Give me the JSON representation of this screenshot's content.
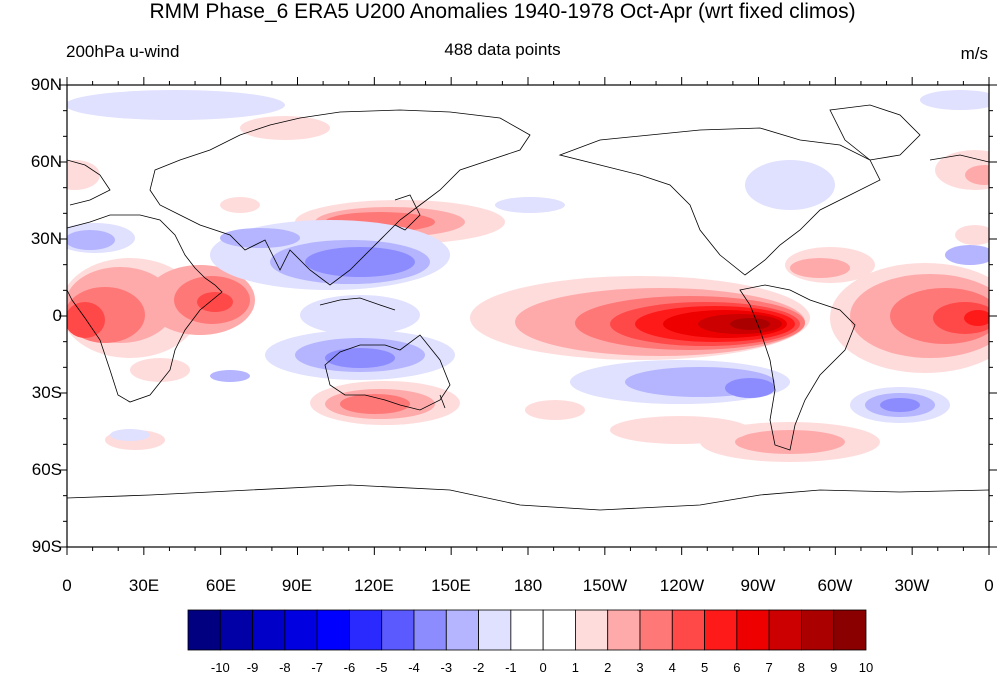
{
  "title": "RMM Phase_6 ERA5 U200 Anomalies 1940-1978 Oct-Apr (wrt fixed climos)",
  "left_string": "200hPa u-wind",
  "center_string": "488 data points",
  "right_string": "m/s",
  "lat_labels": [
    "90N",
    "60N",
    "30N",
    "0",
    "30S",
    "60S",
    "90S"
  ],
  "lon_labels": [
    "0",
    "30E",
    "60E",
    "90E",
    "120E",
    "150E",
    "180",
    "150W",
    "120W",
    "90W",
    "60W",
    "30W",
    "0"
  ],
  "colorbar": {
    "labels": [
      "-10",
      "-9",
      "-8",
      "-7",
      "-6",
      "-5",
      "-4",
      "-3",
      "-2",
      "-1",
      "0",
      "1",
      "2",
      "3",
      "4",
      "5",
      "6",
      "7",
      "8",
      "9",
      "10"
    ],
    "colors": [
      "#000080",
      "#0000a6",
      "#0000c8",
      "#0000e0",
      "#0000ff",
      "#2a2aff",
      "#5a5aff",
      "#8c8cff",
      "#b4b4ff",
      "#e0e0ff",
      "#ffffff",
      "#ffffff",
      "#ffdcdc",
      "#ffaaaa",
      "#ff7878",
      "#ff4848",
      "#ff1a1a",
      "#ee0000",
      "#cc0000",
      "#aa0000",
      "#8a0000"
    ]
  }
}
